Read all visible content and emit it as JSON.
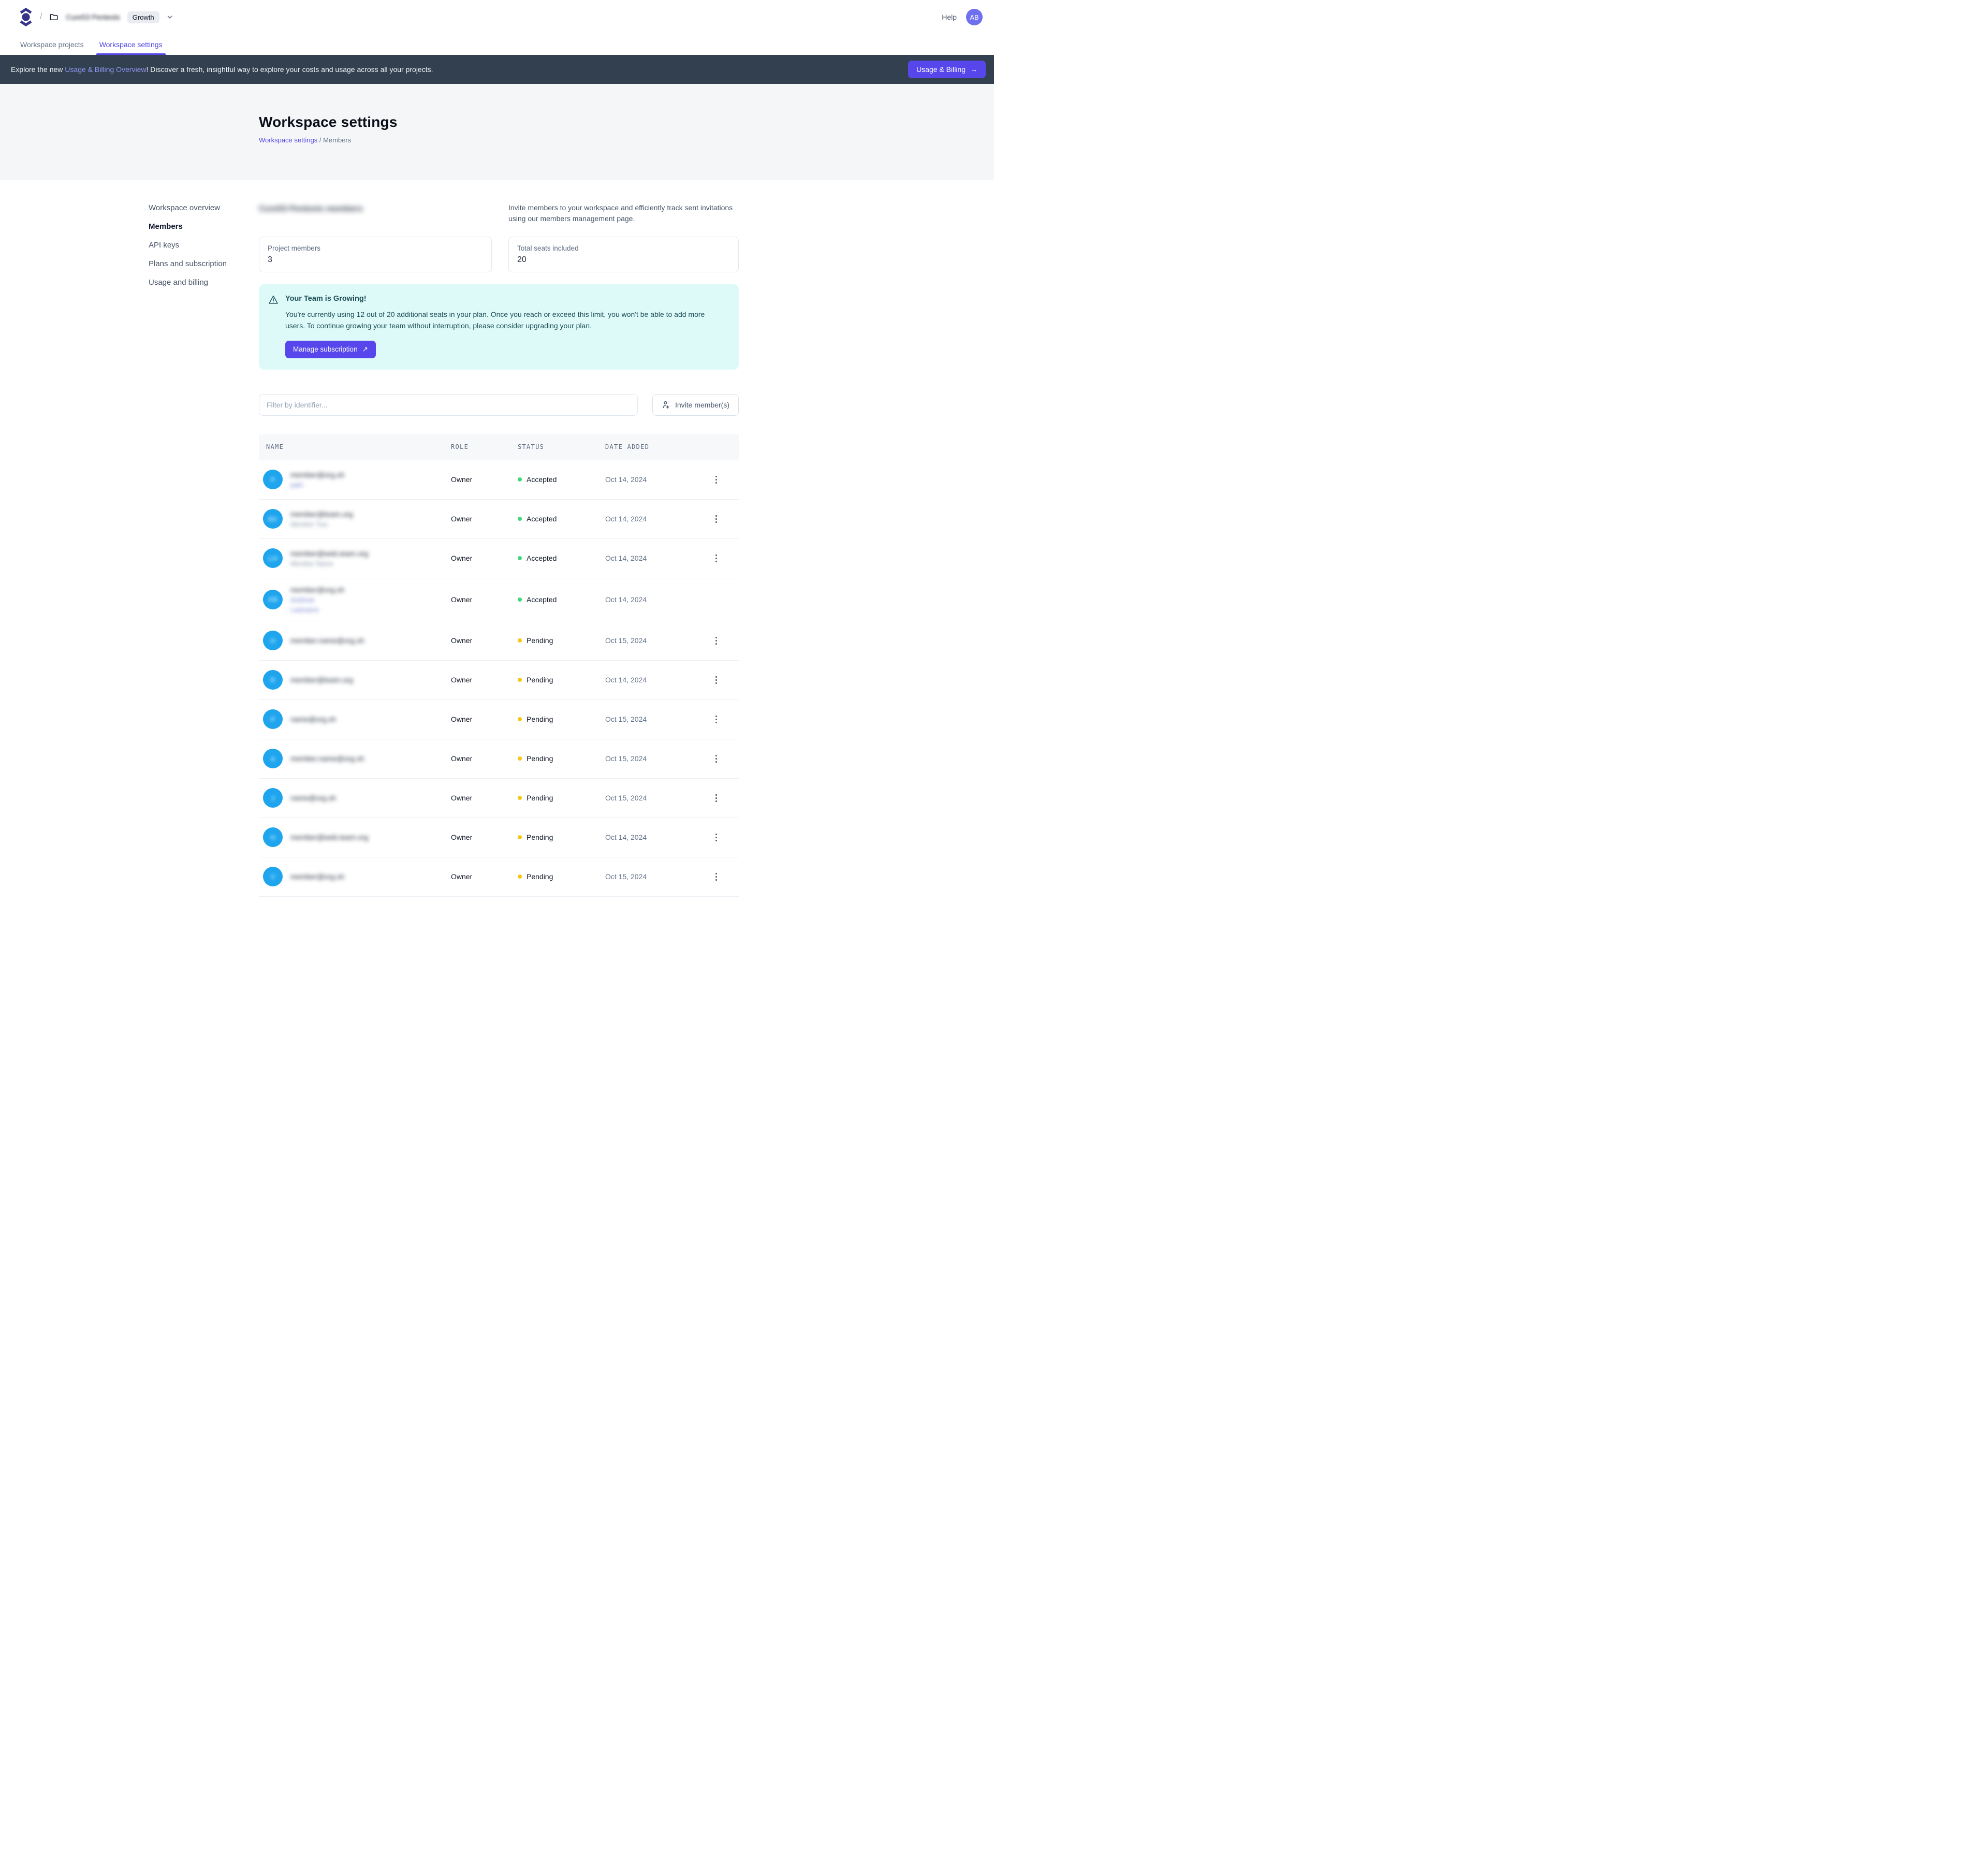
{
  "colors": {
    "accent": "#5746ec",
    "accent_link": "#4f46e5",
    "banner_bg": "#33404f",
    "banner_link": "#9095f2",
    "alert_bg": "#defaf8",
    "alert_text": "#1d4f58",
    "avatar_header_bg": "#6e70ee",
    "avatar_table_bg": "#1ea5ee",
    "status_accepted": "#3ed97b",
    "status_pending": "#f8c617",
    "hero_bg": "#f5f6f8"
  },
  "topbar": {
    "slash": "/",
    "workspace_name_blurred": "Cure53 Pentests",
    "env_badge": "Growth",
    "help": "Help",
    "avatar_initials": "AB"
  },
  "tabs": [
    {
      "label": "Workspace projects",
      "active": false
    },
    {
      "label": "Workspace settings",
      "active": true
    }
  ],
  "banner": {
    "text_prefix": "Explore the new ",
    "link_text": "Usage & Billing Overview",
    "text_suffix": "! Discover a fresh, insightful way to explore your costs and usage across all your projects.",
    "button_label": "Usage & Billing",
    "button_arrow": "→"
  },
  "hero": {
    "title": "Workspace settings",
    "breadcrumb_link": "Workspace settings",
    "breadcrumb_sep": "/",
    "breadcrumb_current": "Members"
  },
  "sidebar": {
    "items": [
      {
        "label": "Workspace overview",
        "active": false
      },
      {
        "label": "Members",
        "active": true
      },
      {
        "label": "API keys",
        "active": false
      },
      {
        "label": "Plans and subscription",
        "active": false
      },
      {
        "label": "Usage and billing",
        "active": false
      }
    ]
  },
  "members_section": {
    "heading_blurred": "Cure53 Pentests members",
    "description": "Invite members to your workspace and efficiently track sent invitations using our members management page.",
    "cards": [
      {
        "label": "Project members",
        "value": "3"
      },
      {
        "label": "Total seats included",
        "value": "20"
      }
    ]
  },
  "alert": {
    "title": "Your Team is Growing!",
    "body": "You're currently using 12 out of 20 additional seats in your plan. Once you reach or exceed this limit, you won't be able to add more users. To continue growing your team without interruption, please consider upgrading your plan.",
    "button_label": "Manage subscription",
    "button_arrow": "↗"
  },
  "toolbar": {
    "filter_placeholder": "Filter by identifier...",
    "invite_button_label": "Invite member(s)"
  },
  "table": {
    "columns": [
      "NAME",
      "ROLE",
      "STATUS",
      "DATE ADDED"
    ],
    "rows": [
      {
        "avatar_blurred": "P",
        "email_blurred": "member@org.sh",
        "secondary": [
          {
            "text": "patri",
            "tint": "link"
          }
        ],
        "role": "Owner",
        "status": "Accepted",
        "status_key": "accepted",
        "date": "Oct 14, 2024",
        "menu": true
      },
      {
        "avatar_blurred": "NC",
        "email_blurred": "member@team.org",
        "secondary": [
          {
            "text": "Member Two",
            "tint": "muted"
          }
        ],
        "role": "Owner",
        "status": "Accepted",
        "status_key": "accepted",
        "date": "Oct 14, 2024",
        "menu": true
      },
      {
        "avatar_blurred": "LH",
        "email_blurred": "member@web.team.org",
        "secondary": [
          {
            "text": "Member Name",
            "tint": "muted"
          }
        ],
        "role": "Owner",
        "status": "Accepted",
        "status_key": "accepted",
        "date": "Oct 14, 2024",
        "menu": true
      },
      {
        "avatar_blurred": "AB",
        "email_blurred": "member@org.sh",
        "secondary": [
          {
            "text": "Andreas",
            "tint": "link"
          },
          {
            "text": "Lastname",
            "tint": "link"
          }
        ],
        "role": "Owner",
        "status": "Accepted",
        "status_key": "accepted",
        "date": "Oct 14, 2024",
        "menu": false
      },
      {
        "avatar_blurred": "H",
        "email_blurred": "member.name@org.sh",
        "secondary": [],
        "role": "Owner",
        "status": "Pending",
        "status_key": "pending",
        "date": "Oct 15, 2024",
        "menu": true
      },
      {
        "avatar_blurred": "R",
        "email_blurred": "member@team.org",
        "secondary": [],
        "role": "Owner",
        "status": "Pending",
        "status_key": "pending",
        "date": "Oct 14, 2024",
        "menu": true
      },
      {
        "avatar_blurred": "P",
        "email_blurred": "name@org.sh",
        "secondary": [],
        "role": "Owner",
        "status": "Pending",
        "status_key": "pending",
        "date": "Oct 15, 2024",
        "menu": true
      },
      {
        "avatar_blurred": "A",
        "email_blurred": "member.name@org.sh",
        "secondary": [],
        "role": "Owner",
        "status": "Pending",
        "status_key": "pending",
        "date": "Oct 15, 2024",
        "menu": true
      },
      {
        "avatar_blurred": "J",
        "email_blurred": "name@org.sh",
        "secondary": [],
        "role": "Owner",
        "status": "Pending",
        "status_key": "pending",
        "date": "Oct 15, 2024",
        "menu": true
      },
      {
        "avatar_blurred": "H",
        "email_blurred": "member@web.team.org",
        "secondary": [],
        "role": "Owner",
        "status": "Pending",
        "status_key": "pending",
        "date": "Oct 14, 2024",
        "menu": true
      },
      {
        "avatar_blurred": "V",
        "email_blurred": "member@org.sh",
        "secondary": [],
        "role": "Owner",
        "status": "Pending",
        "status_key": "pending",
        "date": "Oct 15, 2024",
        "menu": true
      }
    ]
  }
}
